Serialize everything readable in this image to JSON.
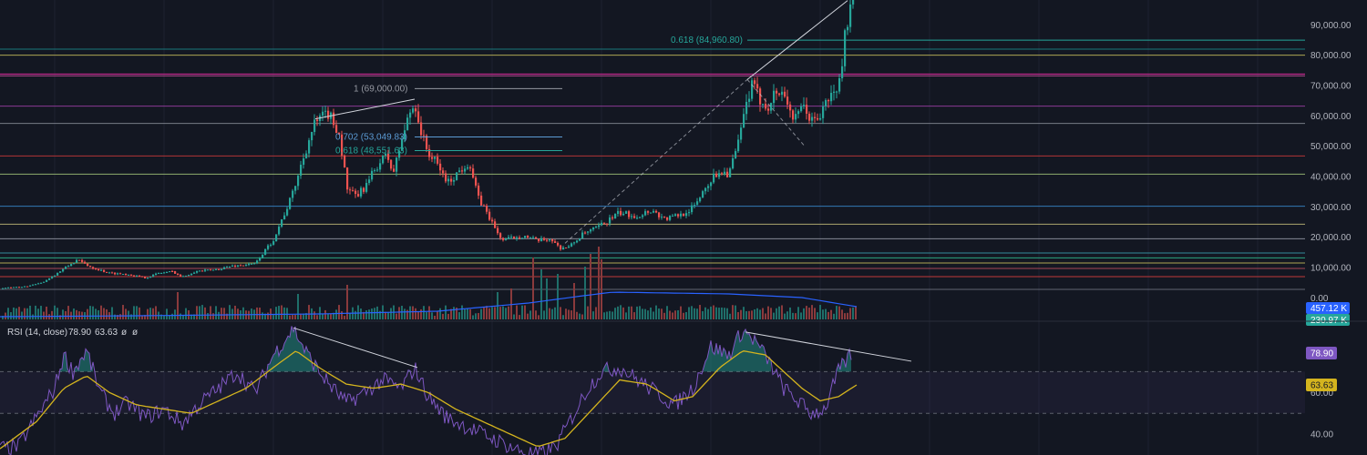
{
  "chart_data": {
    "type": "candlestick",
    "price_axis": {
      "range": [
        -2000,
        97000
      ],
      "ticks": [
        "0.00",
        "10,000.00",
        "20,000.00",
        "30,000.00",
        "40,000.00",
        "50,000.00",
        "60,000.00",
        "70,000.00",
        "80,000.00",
        "90,000.00"
      ],
      "tick_values": [
        0,
        10000,
        20000,
        30000,
        40000,
        50000,
        60000,
        70000,
        80000,
        90000
      ]
    },
    "colors": {
      "background": "#131722",
      "up": "#26a69a",
      "down": "#ef5350",
      "volume_up": "#1f6f6a",
      "volume_down": "#8a3a3c",
      "volume_ma": "#2962ff",
      "rsi_line": "#7e57c2",
      "rsi_ma": "#d4b41e",
      "trendline": "#d1d4dc"
    },
    "horizontal_levels": [
      {
        "value": 82000,
        "color": "#1b8a8c"
      },
      {
        "value": 80000,
        "color": "#c8c05a"
      },
      {
        "value": 73800,
        "color": "#ff2bb0"
      },
      {
        "value": 73200,
        "color": "#d04fa0"
      },
      {
        "value": 63200,
        "color": "#a040a8"
      },
      {
        "value": 57500,
        "color": "#8a8e98"
      },
      {
        "value": 46800,
        "color": "#d03a3a"
      },
      {
        "value": 40800,
        "color": "#a6c87a"
      },
      {
        "value": 30200,
        "color": "#3a8ad0"
      },
      {
        "value": 24300,
        "color": "#c8c07a"
      },
      {
        "value": 19500,
        "color": "#9a9ea8"
      },
      {
        "value": 14800,
        "color": "#3aa0b0"
      },
      {
        "value": 13200,
        "color": "#30c090"
      },
      {
        "value": 11500,
        "color": "#c8c05a"
      },
      {
        "value": 9700,
        "color": "#c05060"
      },
      {
        "value": 7000,
        "color": "#e04040"
      },
      {
        "value": 2800,
        "color": "#707480"
      }
    ],
    "fib_levels": [
      {
        "text": "1 (69,000.00)",
        "value": 69000,
        "color": "#9598a1",
        "line_x": [
          455,
          617
        ]
      },
      {
        "text": "0.702 (53,049.83)",
        "value": 53050,
        "color": "#5b9bd5",
        "line_x": [
          455,
          617
        ]
      },
      {
        "text": "0.618 (48,551.63)",
        "value": 48550,
        "color": "#26a69a",
        "line_x": [
          455,
          617
        ]
      },
      {
        "text": "0.618 (84,960.80)",
        "value": 84960,
        "color": "#26a69a",
        "line_x": [
          820,
          1432
        ]
      }
    ],
    "price_path": [
      [
        0,
        3200
      ],
      [
        25,
        3600
      ],
      [
        45,
        4800
      ],
      [
        60,
        7500
      ],
      [
        75,
        10500
      ],
      [
        85,
        12500
      ],
      [
        100,
        10200
      ],
      [
        120,
        8200
      ],
      [
        140,
        7800
      ],
      [
        160,
        6600
      ],
      [
        175,
        8200
      ],
      [
        190,
        8700
      ],
      [
        200,
        6800
      ],
      [
        215,
        8800
      ],
      [
        235,
        9200
      ],
      [
        255,
        10500
      ],
      [
        280,
        11200
      ],
      [
        300,
        19000
      ],
      [
        320,
        33000
      ],
      [
        335,
        48000
      ],
      [
        345,
        57000
      ],
      [
        360,
        61000
      ],
      [
        372,
        55000
      ],
      [
        382,
        35000
      ],
      [
        392,
        33500
      ],
      [
        402,
        37000
      ],
      [
        415,
        44000
      ],
      [
        425,
        47000
      ],
      [
        432,
        41000
      ],
      [
        442,
        53000
      ],
      [
        450,
        61000
      ],
      [
        456,
        64000
      ],
      [
        462,
        55000
      ],
      [
        470,
        48000
      ],
      [
        480,
        44000
      ],
      [
        492,
        38000
      ],
      [
        505,
        42000
      ],
      [
        515,
        45000
      ],
      [
        525,
        33000
      ],
      [
        535,
        28000
      ],
      [
        545,
        22000
      ],
      [
        552,
        19000
      ],
      [
        565,
        20000
      ],
      [
        575,
        20500
      ],
      [
        590,
        18800
      ],
      [
        605,
        19500
      ],
      [
        614,
        16500
      ],
      [
        625,
        16800
      ],
      [
        640,
        21000
      ],
      [
        655,
        23000
      ],
      [
        665,
        25000
      ],
      [
        680,
        28000
      ],
      [
        700,
        27000
      ],
      [
        715,
        29000
      ],
      [
        730,
        26000
      ],
      [
        748,
        27500
      ],
      [
        762,
        30000
      ],
      [
        775,
        37000
      ],
      [
        790,
        42000
      ],
      [
        800,
        41000
      ],
      [
        810,
        50000
      ],
      [
        818,
        62000
      ],
      [
        825,
        70000
      ],
      [
        832,
        66500
      ],
      [
        842,
        63000
      ],
      [
        852,
        68000
      ],
      [
        862,
        67000
      ],
      [
        872,
        58000
      ],
      [
        882,
        63000
      ],
      [
        892,
        58000
      ],
      [
        900,
        60000
      ],
      [
        910,
        66000
      ],
      [
        918,
        68000
      ],
      [
        922,
        72000
      ],
      [
        926,
        82000
      ],
      [
        929,
        90000
      ],
      [
        932,
        94000
      ],
      [
        936,
        96500
      ]
    ],
    "volume_ma_path": [
      [
        0,
        3
      ],
      [
        150,
        4
      ],
      [
        350,
        6
      ],
      [
        480,
        9
      ],
      [
        580,
        18
      ],
      [
        640,
        26
      ],
      [
        672,
        30
      ],
      [
        800,
        28
      ],
      [
        880,
        24
      ],
      [
        940,
        14
      ]
    ],
    "trendlines": [
      {
        "from": [
          346,
          59000
        ],
        "to": [
          455,
          65500
        ],
        "dashed": false
      },
      {
        "from": [
          620,
          18000
        ],
        "to": [
          820,
          72000
        ],
        "dashed": true
      },
      {
        "from": [
          820,
          72000
        ],
        "to": [
          930,
          98000
        ],
        "dashed": false
      },
      {
        "from": [
          820,
          72000
        ],
        "to": [
          883,
          50000
        ],
        "dashed": true
      }
    ],
    "volume_badges": [
      {
        "text": "457.12 K",
        "bg": "#2962ff",
        "fg": "#ffffff"
      },
      {
        "text": "230.97 K",
        "bg": "#26a69a",
        "fg": "#ffffff"
      }
    ],
    "rsi": {
      "legend": "RSI (14, close)",
      "values": [
        "78.90",
        "63.63"
      ],
      "range": [
        30,
        92
      ],
      "ticks": [
        "60.00",
        "40.00"
      ],
      "tick_values": [
        60,
        40
      ],
      "bands": [
        70,
        50
      ],
      "path": [
        [
          0,
          33
        ],
        [
          20,
          34
        ],
        [
          40,
          48
        ],
        [
          60,
          62
        ],
        [
          70,
          78
        ],
        [
          80,
          70
        ],
        [
          95,
          80
        ],
        [
          110,
          60
        ],
        [
          125,
          50
        ],
        [
          140,
          55
        ],
        [
          160,
          48
        ],
        [
          180,
          52
        ],
        [
          200,
          45
        ],
        [
          220,
          55
        ],
        [
          240,
          62
        ],
        [
          260,
          70
        ],
        [
          280,
          60
        ],
        [
          300,
          78
        ],
        [
          312,
          85
        ],
        [
          322,
          91
        ],
        [
          335,
          80
        ],
        [
          350,
          70
        ],
        [
          365,
          62
        ],
        [
          380,
          55
        ],
        [
          400,
          60
        ],
        [
          420,
          66
        ],
        [
          440,
          62
        ],
        [
          455,
          72
        ],
        [
          470,
          58
        ],
        [
          490,
          48
        ],
        [
          510,
          44
        ],
        [
          530,
          40
        ],
        [
          550,
          36
        ],
        [
          570,
          32
        ],
        [
          590,
          30
        ],
        [
          610,
          34
        ],
        [
          630,
          50
        ],
        [
          645,
          62
        ],
        [
          660,
          70
        ],
        [
          680,
          72
        ],
        [
          700,
          66
        ],
        [
          720,
          60
        ],
        [
          740,
          54
        ],
        [
          760,
          62
        ],
        [
          780,
          82
        ],
        [
          800,
          78
        ],
        [
          815,
          90
        ],
        [
          830,
          84
        ],
        [
          845,
          74
        ],
        [
          860,
          62
        ],
        [
          875,
          56
        ],
        [
          890,
          50
        ],
        [
          905,
          52
        ],
        [
          920,
          70
        ],
        [
          935,
          79
        ]
      ],
      "ma_path": [
        [
          0,
          33
        ],
        [
          40,
          46
        ],
        [
          70,
          62
        ],
        [
          95,
          68
        ],
        [
          120,
          60
        ],
        [
          150,
          54
        ],
        [
          180,
          52
        ],
        [
          210,
          50
        ],
        [
          240,
          56
        ],
        [
          270,
          62
        ],
        [
          300,
          72
        ],
        [
          325,
          80
        ],
        [
          350,
          72
        ],
        [
          380,
          64
        ],
        [
          410,
          62
        ],
        [
          440,
          64
        ],
        [
          470,
          60
        ],
        [
          500,
          52
        ],
        [
          530,
          46
        ],
        [
          560,
          40
        ],
        [
          590,
          34
        ],
        [
          620,
          38
        ],
        [
          650,
          52
        ],
        [
          680,
          66
        ],
        [
          710,
          64
        ],
        [
          740,
          56
        ],
        [
          760,
          58
        ],
        [
          790,
          72
        ],
        [
          815,
          80
        ],
        [
          840,
          78
        ],
        [
          860,
          70
        ],
        [
          880,
          62
        ],
        [
          900,
          56
        ],
        [
          920,
          58
        ],
        [
          940,
          63.63
        ]
      ],
      "divergence_lines": [
        {
          "from": [
            322,
            91
          ],
          "to": [
            458,
            72
          ]
        },
        {
          "from": [
            818,
            89
          ],
          "to": [
            1000,
            75
          ]
        }
      ]
    }
  }
}
